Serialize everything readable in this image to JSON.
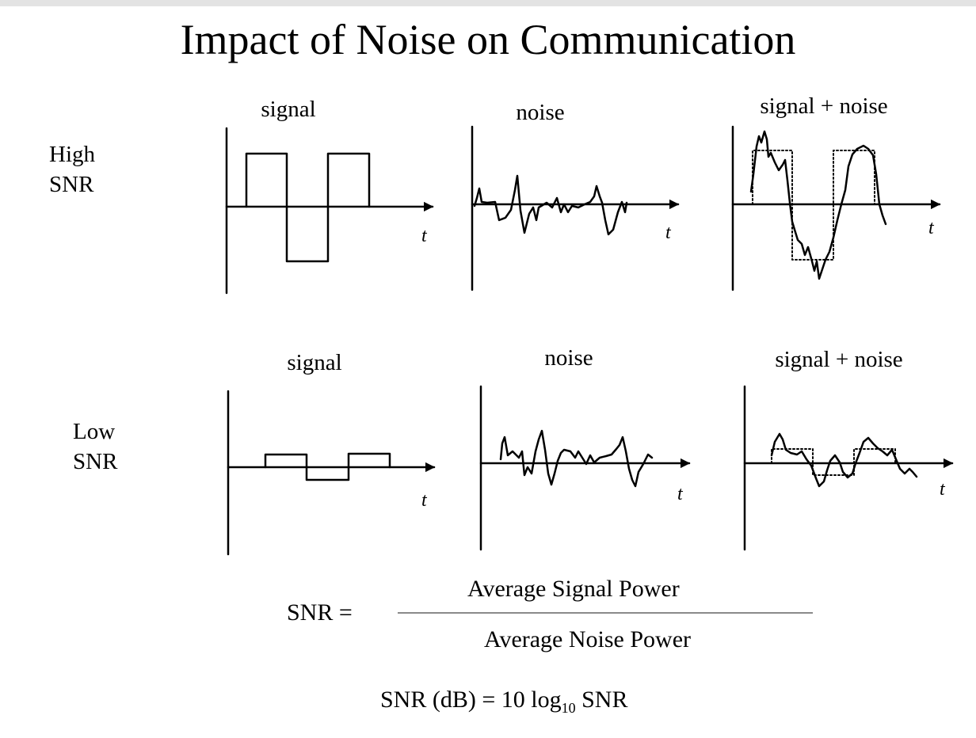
{
  "title": "Impact of Noise on Communication",
  "rows": [
    {
      "label_line1": "High",
      "label_line2": "SNR",
      "panels": [
        {
          "label": "signal",
          "axis_var": "t"
        },
        {
          "label": "noise",
          "axis_var": "t"
        },
        {
          "label": "signal + noise",
          "axis_var": "t"
        }
      ]
    },
    {
      "label_line1": "Low",
      "label_line2": "SNR",
      "panels": [
        {
          "label": "signal",
          "axis_var": "t"
        },
        {
          "label": "noise",
          "axis_var": "t"
        },
        {
          "label": "signal + noise",
          "axis_var": "t"
        }
      ]
    }
  ],
  "formula": {
    "lhs": "SNR =",
    "numerator": "Average Signal Power",
    "denominator": "Average Noise Power",
    "db_prefix": "SNR (dB) =  10 log",
    "db_sub": "10",
    "db_suffix": " SNR"
  },
  "colors": {
    "ink": "#000000",
    "fraction_line": "#8a8a8a",
    "top_bar": "#e3e3e3"
  }
}
